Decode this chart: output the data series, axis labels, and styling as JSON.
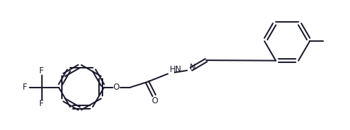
{
  "bg_color": "#ffffff",
  "line_color": "#1a1a2e",
  "lw": 1.5,
  "fs": 8.5,
  "figsize": [
    5.09,
    1.9
  ],
  "dpi": 100,
  "xlim": [
    0,
    509
  ],
  "ylim": [
    0,
    190
  ]
}
